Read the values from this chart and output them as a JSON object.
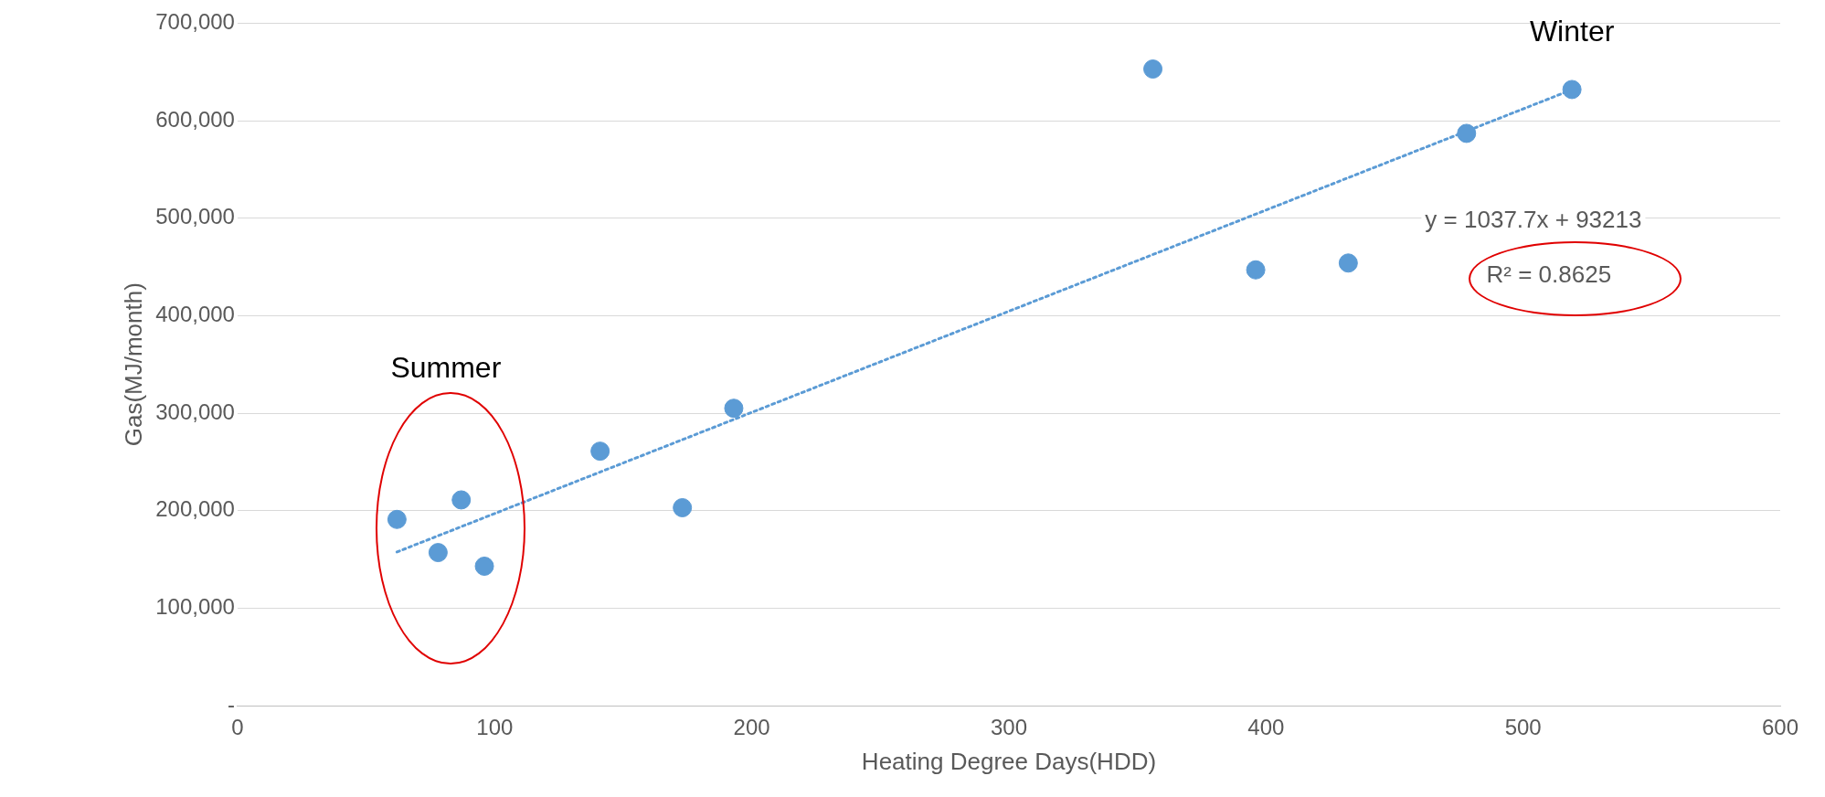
{
  "chart_data": {
    "type": "scatter",
    "xlabel": "Heating Degree Days(HDD)",
    "ylabel": "Gas(MJ/month)",
    "series": [
      {
        "type": "scatter",
        "color": "#5b9bd5",
        "x": [
          62,
          78,
          87,
          96,
          141,
          173,
          193,
          356,
          396,
          432,
          478,
          519
        ],
        "values": [
          191000,
          157000,
          211000,
          143000,
          261000,
          203000,
          305000,
          653000,
          447000,
          454000,
          587000,
          632000
        ]
      },
      {
        "type": "line",
        "color": "#5b9bd5",
        "line_style": "dotted",
        "marker": "none",
        "x": [
          62,
          519
        ],
        "values": [
          157600,
          631800
        ]
      }
    ],
    "xlim": [
      0,
      600
    ],
    "xticks": [
      0,
      100,
      200,
      300,
      400,
      500,
      600
    ],
    "ylim": [
      0,
      700000
    ],
    "yticks": [
      {
        "value": 0,
        "label": "-"
      },
      {
        "value": 100000,
        "label": "100,000"
      },
      {
        "value": 200000,
        "label": "200,000"
      },
      {
        "value": 300000,
        "label": "300,000"
      },
      {
        "value": 400000,
        "label": "400,000"
      },
      {
        "value": 500000,
        "label": "500,000"
      },
      {
        "value": 600000,
        "label": "600,000"
      },
      {
        "value": 700000,
        "label": "700,000"
      }
    ],
    "grid": "y",
    "legend": false,
    "marker": "circle",
    "annotations": [
      "Summer",
      "Winter",
      "y = 1037.7x + 93213",
      "R² = 0.8625"
    ]
  }
}
